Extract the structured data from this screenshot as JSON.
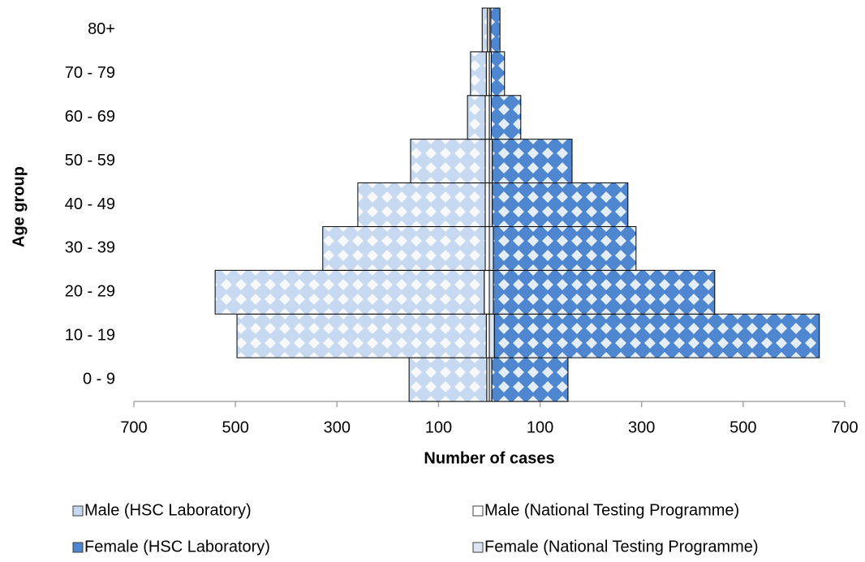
{
  "chart_data": {
    "type": "pyramid",
    "x_axis_label": "Number of cases",
    "y_axis_label": "Age group",
    "categories": [
      "0 - 9",
      "10 - 19",
      "20 - 29",
      "30 - 39",
      "40 - 49",
      "50 - 59",
      "60 - 69",
      "70 - 79",
      "80+"
    ],
    "series": [
      {
        "name": "Male (HSC Laboratory)",
        "color": "#c6d9f1",
        "pattern": "diamond",
        "values": [
          -153,
          -491,
          -530,
          -320,
          -251,
          -147,
          -35,
          -31,
          -10
        ]
      },
      {
        "name": "Male (National Testing Programme)",
        "color": "#ffffff",
        "pattern": "none",
        "values": [
          -5,
          -6,
          -10,
          -8,
          -8,
          -8,
          -8,
          -6,
          -4
        ]
      },
      {
        "name": "Female (HSC Laboratory)",
        "color": "#4f86d0",
        "pattern": "diamond",
        "values": [
          150,
          640,
          436,
          281,
          267,
          157,
          58,
          26,
          18
        ]
      },
      {
        "name": "Female (National Testing Programme)",
        "color": "#dce6f2",
        "pattern": "none",
        "values": [
          5,
          10,
          8,
          8,
          6,
          6,
          4,
          4,
          3
        ]
      }
    ],
    "xlim": [
      -700,
      700
    ],
    "xticks": [
      {
        "value": -700,
        "label": "700"
      },
      {
        "value": -500,
        "label": "500"
      },
      {
        "value": -300,
        "label": "300"
      },
      {
        "value": -100,
        "label": "100"
      },
      100,
      300,
      500,
      700
    ],
    "legend": "bottom"
  }
}
